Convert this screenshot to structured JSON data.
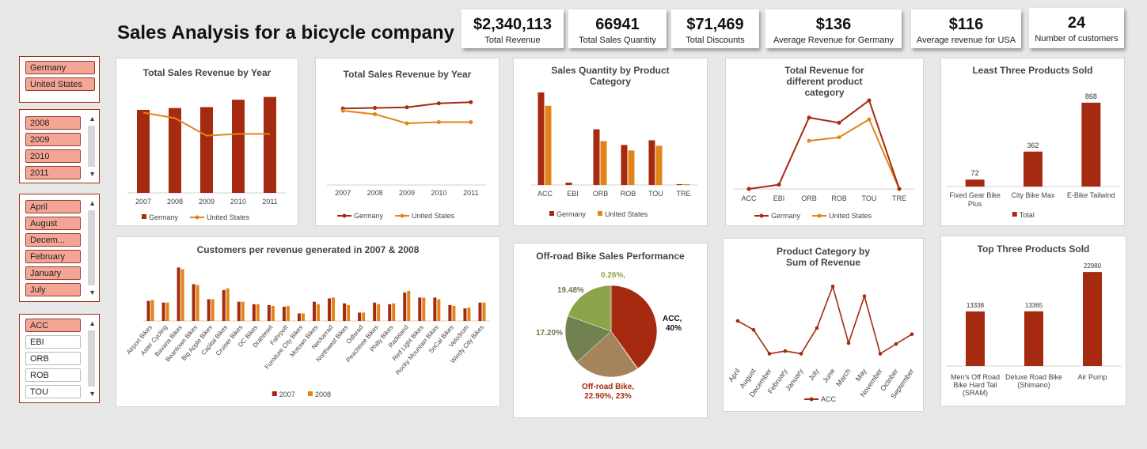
{
  "title": "Sales Analysis for a bicycle company",
  "colors": {
    "germany": "#a52a0f",
    "usa": "#e38418",
    "pie_acc": "#a52a0f",
    "pie_orb": "#a3845b",
    "pie_rob": "#71814f",
    "pie_tou": "#8ca54b",
    "pie_tre": "#e38418"
  },
  "kpis": [
    {
      "value": "$2,340,113",
      "label": "Total Revenue"
    },
    {
      "value": "66941",
      "label": "Total Sales Quantity"
    },
    {
      "value": "$71,469",
      "label": "Total Discounts"
    },
    {
      "value": "$136",
      "label": "Average Revenue for Germany"
    },
    {
      "value": "$116",
      "label": "Average revenue for USA"
    },
    {
      "value": "24",
      "label": "Number of customers"
    }
  ],
  "slicers": {
    "country": [
      {
        "label": "Germany",
        "selected": true
      },
      {
        "label": "United States",
        "selected": true
      }
    ],
    "year": [
      {
        "label": "2008",
        "selected": true
      },
      {
        "label": "2009",
        "selected": true
      },
      {
        "label": "2010",
        "selected": true
      },
      {
        "label": "2011",
        "selected": true
      }
    ],
    "month": [
      {
        "label": "April",
        "selected": true
      },
      {
        "label": "August",
        "selected": true
      },
      {
        "label": "Decem...",
        "selected": true
      },
      {
        "label": "February",
        "selected": true
      },
      {
        "label": "January",
        "selected": true
      },
      {
        "label": "July",
        "selected": true
      }
    ],
    "category": [
      {
        "label": "ACC",
        "selected": true
      },
      {
        "label": "EBI",
        "selected": false
      },
      {
        "label": "ORB",
        "selected": false
      },
      {
        "label": "ROB",
        "selected": false
      },
      {
        "label": "TOU",
        "selected": false
      }
    ]
  },
  "chart_data": [
    {
      "id": "c1",
      "type": "bar",
      "title": "Total Sales Revenue by Year",
      "categories": [
        "2007",
        "2008",
        "2009",
        "2010",
        "2011"
      ],
      "series": [
        {
          "name": "Germany",
          "type": "bar",
          "values": [
            90,
            92,
            93,
            101,
            104
          ]
        },
        {
          "name": "United States",
          "type": "line",
          "values": [
            87,
            81,
            62,
            64,
            64
          ]
        }
      ],
      "ylim": [
        0,
        120
      ],
      "legend": "bottom",
      "grid": false
    },
    {
      "id": "c2",
      "type": "line",
      "title": "Total Sales Revenue by Year",
      "categories": [
        "2007",
        "2008",
        "2009",
        "2010",
        "2011"
      ],
      "series": [
        {
          "name": "Germany",
          "values": [
            67,
            67.5,
            68,
            71.5,
            72.5
          ]
        },
        {
          "name": "United States",
          "values": [
            65,
            62,
            54,
            55,
            55
          ]
        }
      ],
      "ylim": [
        0,
        90
      ],
      "legend": "bottom",
      "grid": false
    },
    {
      "id": "c3",
      "type": "bar",
      "title": "Sales Quantity by Product Category",
      "categories": [
        "ACC",
        "EBI",
        "ORB",
        "ROB",
        "TOU",
        "TRE"
      ],
      "series": [
        {
          "name": "Germany",
          "values": [
            118,
            3,
            71,
            51,
            57,
            1
          ]
        },
        {
          "name": "United States",
          "values": [
            101,
            0,
            56,
            44,
            50,
            1
          ]
        }
      ],
      "ylim": [
        0,
        125
      ],
      "legend": "bottom",
      "grid": false
    },
    {
      "id": "c4",
      "type": "line",
      "title": "Total Revenue for different product category",
      "categories": [
        "ACC",
        "EBI",
        "ORB",
        "ROB",
        "TOU",
        "TRE"
      ],
      "series": [
        {
          "name": "Germany",
          "values": [
            0,
            5,
            83,
            77,
            103,
            0
          ]
        },
        {
          "name": "United States",
          "values": [
            null,
            null,
            56,
            60,
            81,
            0
          ]
        }
      ],
      "ylim": [
        0,
        115
      ],
      "legend": "bottom",
      "grid": false
    },
    {
      "id": "c5",
      "type": "bar",
      "title": "Least Three Products Sold",
      "categories": [
        "Fixed Gear Bike Plus",
        "City Bike Max",
        "E-Bike Tailwind"
      ],
      "series": [
        {
          "name": "Total",
          "values": [
            72,
            362,
            868
          ]
        }
      ],
      "data_labels": [
        "72",
        "362",
        "868"
      ],
      "ylim": [
        0,
        900
      ],
      "legend": "bottom",
      "grid": false
    },
    {
      "id": "c6",
      "type": "bar",
      "title": "Customers per revenue generated in 2007 & 2008",
      "categories": [
        "Airport Bikes",
        "Aster Cycling",
        "Bavaria Bikes",
        "Beantown Bikes",
        "Big Apple Bikes",
        "Capital Bikes",
        "Cruiser Bikes",
        "DC Bikes",
        "Drahtesel",
        "Fahrpott",
        "Furniture City Bikes",
        "Motown Bikes",
        "Neckarrad",
        "Northwest Bikes",
        "Odlsrad",
        "Peachtree Bikes",
        "Philly Bikes",
        "Radeland",
        "Red Light Bikes",
        "Rocky Mountain Bikes",
        "SoCal Bikes",
        "Velodrom",
        "Windy City Bikes"
      ],
      "series": [
        {
          "name": "2007",
          "values": [
            24,
            22,
            64,
            44,
            26,
            37,
            23,
            20,
            19,
            17,
            9,
            23,
            27,
            21,
            10,
            22,
            20,
            34,
            28,
            28,
            19,
            15,
            22
          ],
          "values_2007": []
        },
        {
          "name": "2008",
          "values": [
            25,
            22,
            62,
            43,
            26,
            39,
            23,
            20,
            18,
            18,
            9,
            20,
            28,
            19,
            10,
            20,
            21,
            36,
            28,
            26,
            18,
            16,
            22
          ]
        }
      ],
      "ylim": [
        0,
        70
      ],
      "legend": "bottom",
      "grid": false
    },
    {
      "id": "c7",
      "type": "pie",
      "title": "Off-road Bike Sales Performance",
      "slices": [
        {
          "name": "ACC",
          "value": 40
        },
        {
          "name": "TRE",
          "value": 0.26
        },
        {
          "name": "Off-road Bike",
          "value": 22.9
        },
        {
          "name": "ROB",
          "value": 17.2
        },
        {
          "name": "TOU",
          "value": 19.48
        }
      ],
      "labels": {
        "acc": "ACC,",
        "acc_pct": "40%",
        "tre": "0.26%,",
        "orb": "Off-road Bike,",
        "orb_pct": "22.90%, 23%",
        "rob": "17.20%",
        "tou": "19.48%"
      }
    },
    {
      "id": "c8",
      "type": "line",
      "title": "Product Category by Sum of Revenue",
      "categories": [
        "April",
        "August",
        "December",
        "February",
        "January",
        "July",
        "June",
        "March",
        "May",
        "November",
        "October",
        "September"
      ],
      "series": [
        {
          "name": "ACC",
          "values": [
            50,
            40,
            13,
            16,
            13,
            42,
            89,
            25,
            78,
            13,
            24,
            35
          ]
        }
      ],
      "ylim": [
        0,
        100
      ],
      "legend": "bottom",
      "grid": false
    },
    {
      "id": "c9",
      "type": "bar",
      "title": "Top Three Products Sold",
      "categories": [
        "Men's Off Road Bike Hard Tail (SRAM)",
        "Deluxe Road Bike (Shimano)",
        "Air Pump"
      ],
      "series": [
        {
          "name": "Total",
          "values": [
            13338,
            13365,
            22980
          ]
        }
      ],
      "data_labels": [
        "13338",
        "13365",
        "22980"
      ],
      "ylim": [
        0,
        23000
      ],
      "grid": false
    }
  ]
}
